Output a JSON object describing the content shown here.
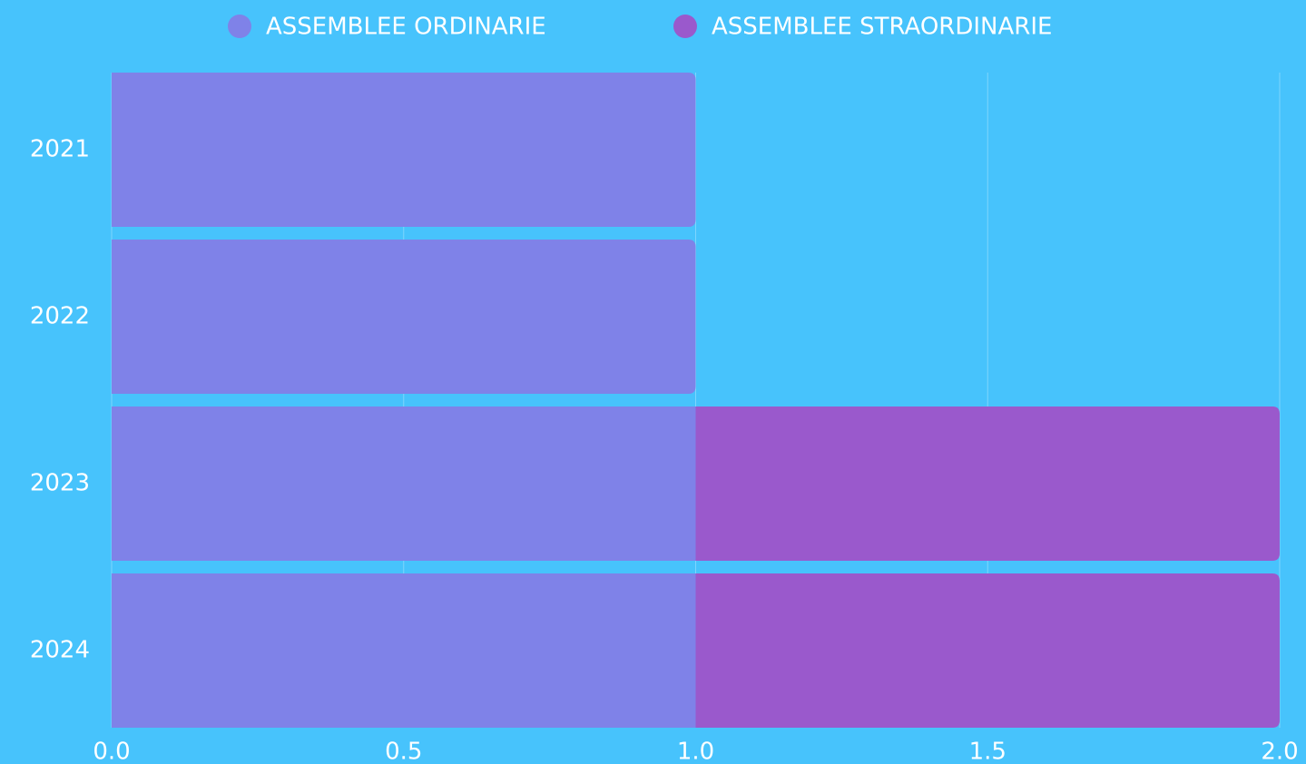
{
  "chart_data": {
    "type": "stacked-barh",
    "categories": [
      "2021",
      "2022",
      "2023",
      "2024"
    ],
    "series": [
      {
        "name": "ASSEMBLEE ORDINARIE",
        "color": "#7f82e8",
        "values": [
          1,
          1,
          1,
          1
        ]
      },
      {
        "name": "ASSEMBLEE STRAORDINARIE",
        "color": "#9a59cc",
        "values": [
          0,
          0,
          1,
          1
        ]
      }
    ],
    "xlim": [
      0,
      2
    ],
    "xticks": [
      {
        "value": 0,
        "label": "0.0"
      },
      0.5,
      {
        "value": 1,
        "label": "1.0"
      },
      1.5,
      {
        "value": 2,
        "label": "2.0"
      }
    ],
    "grid": true,
    "legend": "top"
  }
}
